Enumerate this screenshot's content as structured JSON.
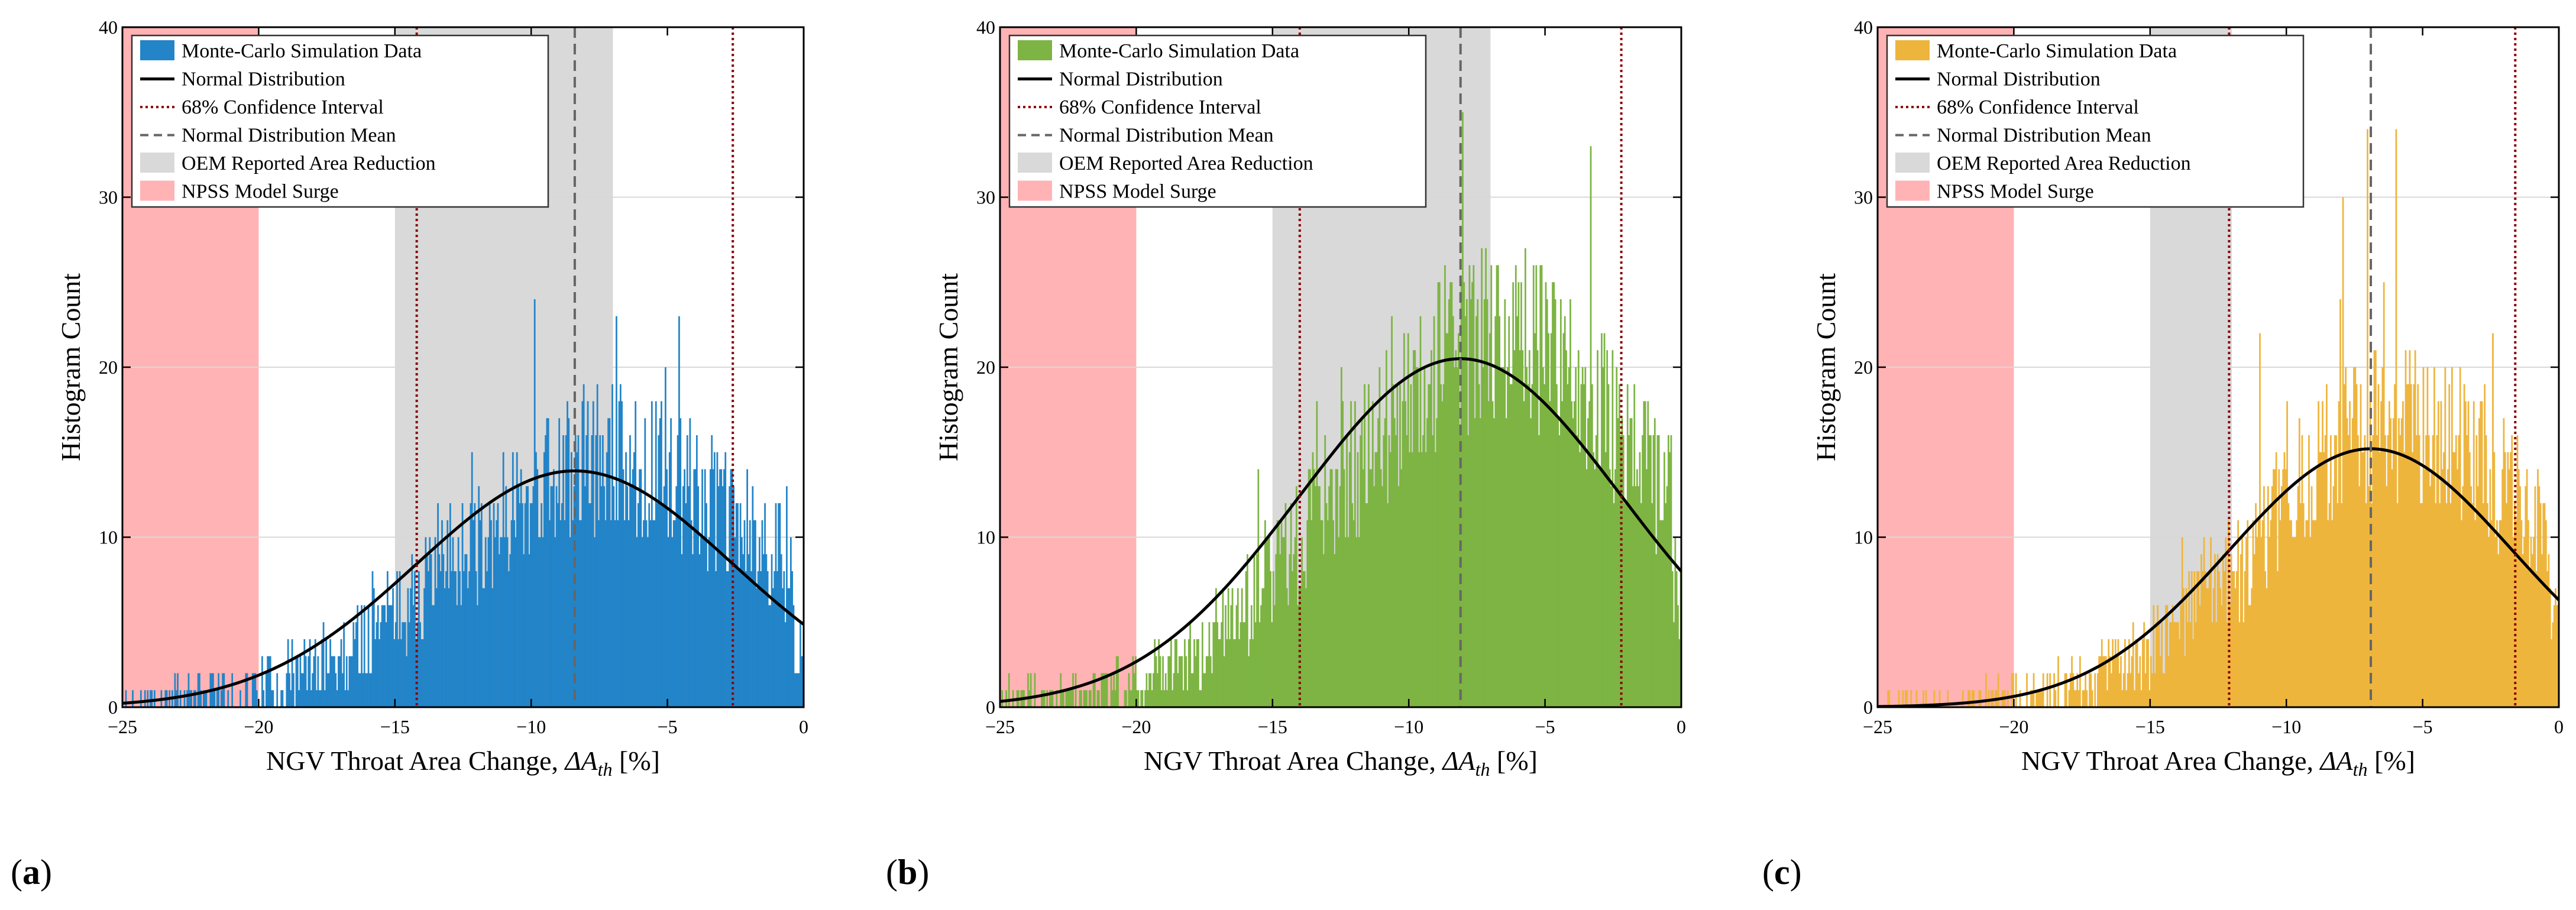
{
  "figure": {
    "panel_labels": [
      "(a)",
      "(b)",
      "(c)"
    ]
  },
  "colors": {
    "surge": "#ffb3b5",
    "oem": "#d9d9d9",
    "normal": "#000000",
    "ci": "#8b0000",
    "mean": "#666666",
    "grid": "#d8d8d8"
  },
  "chart_data": [
    {
      "type": "bar",
      "panel": "(a)",
      "color": "#2384c8",
      "xlabel_main": "NGV Throat Area Change, ",
      "xlabel_sym": "ΔA",
      "xlabel_sub": "th",
      "xlabel_unit": " [%]",
      "ylabel": "Histogram Count",
      "xlim": [
        -25,
        0
      ],
      "ylim": [
        0,
        40
      ],
      "xticks": [
        -25,
        -20,
        -15,
        -10,
        -5,
        0
      ],
      "yticks": [
        0,
        10,
        20,
        30,
        40
      ],
      "grid": true,
      "legend_position": "top-left",
      "legend": [
        "Monte-Carlo Simulation Data",
        "Normal Distribution",
        "68% Confidence Interval",
        "Normal Distribution Mean",
        "OEM Reported Area Reduction",
        "NPSS Model Surge"
      ],
      "surge_region": [
        -25,
        -20
      ],
      "oem_region": [
        -15,
        -7
      ],
      "normal": {
        "mean": -8.4,
        "sigma": 5.8,
        "peak": 13.9
      },
      "ci": [
        -14.2,
        -2.6
      ],
      "histogram": {
        "bins": 500,
        "seed": 11,
        "cap": 38
      }
    },
    {
      "type": "bar",
      "panel": "(b)",
      "color": "#7db443",
      "xlabel_main": "NGV Throat Area Change, ",
      "xlabel_sym": "ΔA",
      "xlabel_sub": "th",
      "xlabel_unit": " [%]",
      "ylabel": "Histogram Count",
      "xlim": [
        -25,
        0
      ],
      "ylim": [
        0,
        40
      ],
      "xticks": [
        -25,
        -20,
        -15,
        -10,
        -5,
        0
      ],
      "yticks": [
        0,
        10,
        20,
        30,
        40
      ],
      "grid": true,
      "legend_position": "top-left",
      "legend": [
        "Monte-Carlo Simulation Data",
        "Normal Distribution",
        "68% Confidence Interval",
        "Normal Distribution Mean",
        "OEM Reported Area Reduction",
        "NPSS Model Surge"
      ],
      "surge_region": [
        -25,
        -20
      ],
      "oem_region": [
        -15,
        -7
      ],
      "normal": {
        "mean": -8.1,
        "sigma": 5.9,
        "peak": 20.5
      },
      "ci": [
        -14.0,
        -2.2
      ],
      "histogram": {
        "bins": 500,
        "seed": 23,
        "cap": 40
      }
    },
    {
      "type": "bar",
      "panel": "(c)",
      "color": "#eeb53d",
      "xlabel_main": "NGV Throat Area Change, ",
      "xlabel_sym": "ΔA",
      "xlabel_sub": "th",
      "xlabel_unit": " [%]",
      "ylabel": "Histogram Count",
      "xlim": [
        -25,
        0
      ],
      "ylim": [
        0,
        40
      ],
      "xticks": [
        -25,
        -20,
        -15,
        -10,
        -5,
        0
      ],
      "yticks": [
        0,
        10,
        20,
        30,
        40
      ],
      "grid": true,
      "legend_position": "top-left",
      "legend": [
        "Monte-Carlo Simulation Data",
        "Normal Distribution",
        "68% Confidence Interval",
        "Normal Distribution Mean",
        "OEM Reported Area Reduction",
        "NPSS Model Surge"
      ],
      "surge_region": [
        -25,
        -20
      ],
      "oem_region": [
        -15,
        -12
      ],
      "normal": {
        "mean": -6.9,
        "sigma": 5.2,
        "peak": 15.2
      },
      "ci": [
        -12.1,
        -1.6
      ],
      "histogram": {
        "bins": 500,
        "seed": 37,
        "cap": 40
      }
    }
  ]
}
